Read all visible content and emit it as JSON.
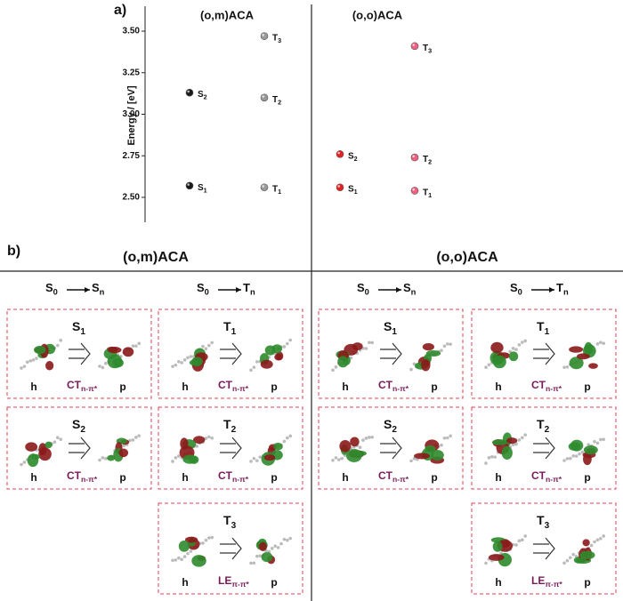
{
  "chart_data": {
    "type": "scatter",
    "panel_label": "a)",
    "ylabel": "Energy / [eV]",
    "ylim": [
      2.35,
      3.65
    ],
    "yticks": [
      {
        "value": 2.5,
        "label": "2.50"
      },
      {
        "value": 2.75,
        "label": "2.75"
      },
      {
        "value": 3.0,
        "label": "3.00"
      },
      {
        "value": 3.25,
        "label": "3.25"
      },
      {
        "value": 3.5,
        "label": "3.50"
      }
    ],
    "series": [
      {
        "name": "(o,m)ACA",
        "labels": [
          "S",
          "S",
          "T",
          "T",
          "T"
        ],
        "subscripts": [
          "1",
          "2",
          "1",
          "2",
          "3"
        ],
        "values": [
          2.57,
          3.13,
          2.56,
          3.1,
          3.47
        ],
        "colors": [
          "#1a1a1a",
          "#1a1a1a",
          "#9a9a9a",
          "#9a9a9a",
          "#9a9a9a"
        ]
      },
      {
        "name": "(o,o)ACA",
        "labels": [
          "S",
          "S",
          "T",
          "T",
          "T"
        ],
        "subscripts": [
          "1",
          "2",
          "1",
          "2",
          "3"
        ],
        "values": [
          2.56,
          2.76,
          2.54,
          2.74,
          3.41
        ],
        "colors": [
          "#e52222",
          "#e52222",
          "#f06080",
          "#f06080",
          "#f06080"
        ]
      }
    ]
  },
  "panel_b": {
    "label": "b)",
    "sections": [
      {
        "title": "(o,m)ACA",
        "columns": [
          {
            "heading": {
              "from": "S",
              "from_sub": "0",
              "to": "S",
              "to_sub": "n"
            },
            "boxes": [
              {
                "state": "S",
                "state_sub": "1",
                "hole": "h",
                "particle": "p",
                "type": "CT",
                "type_sub": "n-π*"
              },
              {
                "state": "S",
                "state_sub": "2",
                "hole": "h",
                "particle": "p",
                "type": "CT",
                "type_sub": "n-π*"
              }
            ]
          },
          {
            "heading": {
              "from": "S",
              "from_sub": "0",
              "to": "T",
              "to_sub": "n"
            },
            "boxes": [
              {
                "state": "T",
                "state_sub": "1",
                "hole": "h",
                "particle": "p",
                "type": "CT",
                "type_sub": "n-π*"
              },
              {
                "state": "T",
                "state_sub": "2",
                "hole": "h",
                "particle": "p",
                "type": "CT",
                "type_sub": "n-π*"
              },
              {
                "state": "T",
                "state_sub": "3",
                "hole": "h",
                "particle": "p",
                "type": "LE",
                "type_sub": "π-π*"
              }
            ]
          }
        ]
      },
      {
        "title": "(o,o)ACA",
        "columns": [
          {
            "heading": {
              "from": "S",
              "from_sub": "0",
              "to": "S",
              "to_sub": "n"
            },
            "boxes": [
              {
                "state": "S",
                "state_sub": "1",
                "hole": "h",
                "particle": "p",
                "type": "CT",
                "type_sub": "n-π*"
              },
              {
                "state": "S",
                "state_sub": "2",
                "hole": "h",
                "particle": "p",
                "type": "CT",
                "type_sub": "n-π*"
              }
            ]
          },
          {
            "heading": {
              "from": "S",
              "from_sub": "0",
              "to": "T",
              "to_sub": "n"
            },
            "boxes": [
              {
                "state": "T",
                "state_sub": "1",
                "hole": "h",
                "particle": "p",
                "type": "CT",
                "type_sub": "n-π*"
              },
              {
                "state": "T",
                "state_sub": "2",
                "hole": "h",
                "particle": "p",
                "type": "CT",
                "type_sub": "n-π*"
              },
              {
                "state": "T",
                "state_sub": "3",
                "hole": "h",
                "particle": "p",
                "type": "LE",
                "type_sub": "π-π*"
              }
            ]
          }
        ]
      }
    ]
  }
}
